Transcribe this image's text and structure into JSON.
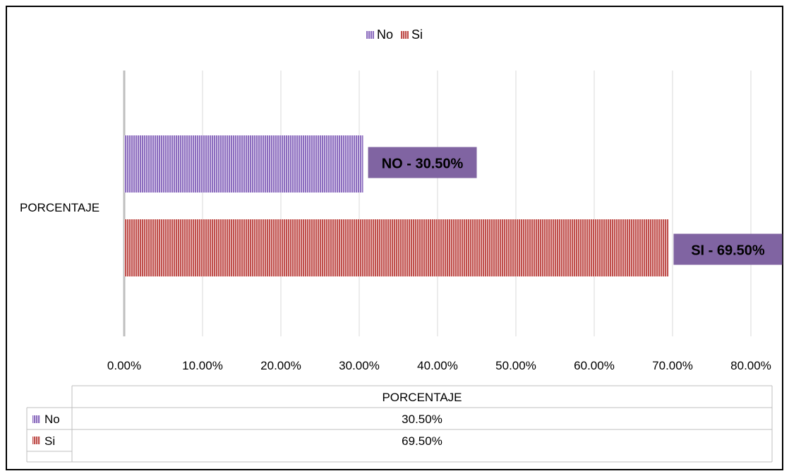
{
  "chart_data": {
    "type": "bar",
    "orientation": "horizontal",
    "categories": [
      "PORCENTAJE"
    ],
    "series": [
      {
        "name": "No",
        "values": [
          30.5
        ],
        "color": "#8C6DBE",
        "data_label": "NO - 30.50%"
      },
      {
        "name": "Si",
        "values": [
          69.5
        ],
        "color": "#C0504D",
        "data_label": "SI - 69.50%"
      }
    ],
    "xlim": [
      0,
      80
    ],
    "x_ticks": [
      "0.00%",
      "10.00%",
      "20.00%",
      "30.00%",
      "40.00%",
      "50.00%",
      "60.00%",
      "70.00%",
      "80.00%"
    ],
    "legend_position": "top",
    "grid": true,
    "data_table": {
      "header": "PORCENTAJE",
      "rows": [
        {
          "label": "No",
          "value": "30.50%"
        },
        {
          "label": "Si",
          "value": "69.50%"
        }
      ]
    }
  },
  "colors": {
    "label_box": "#8064A2",
    "gridline": "#D9D9D9",
    "axis": "#BFBFBF"
  }
}
